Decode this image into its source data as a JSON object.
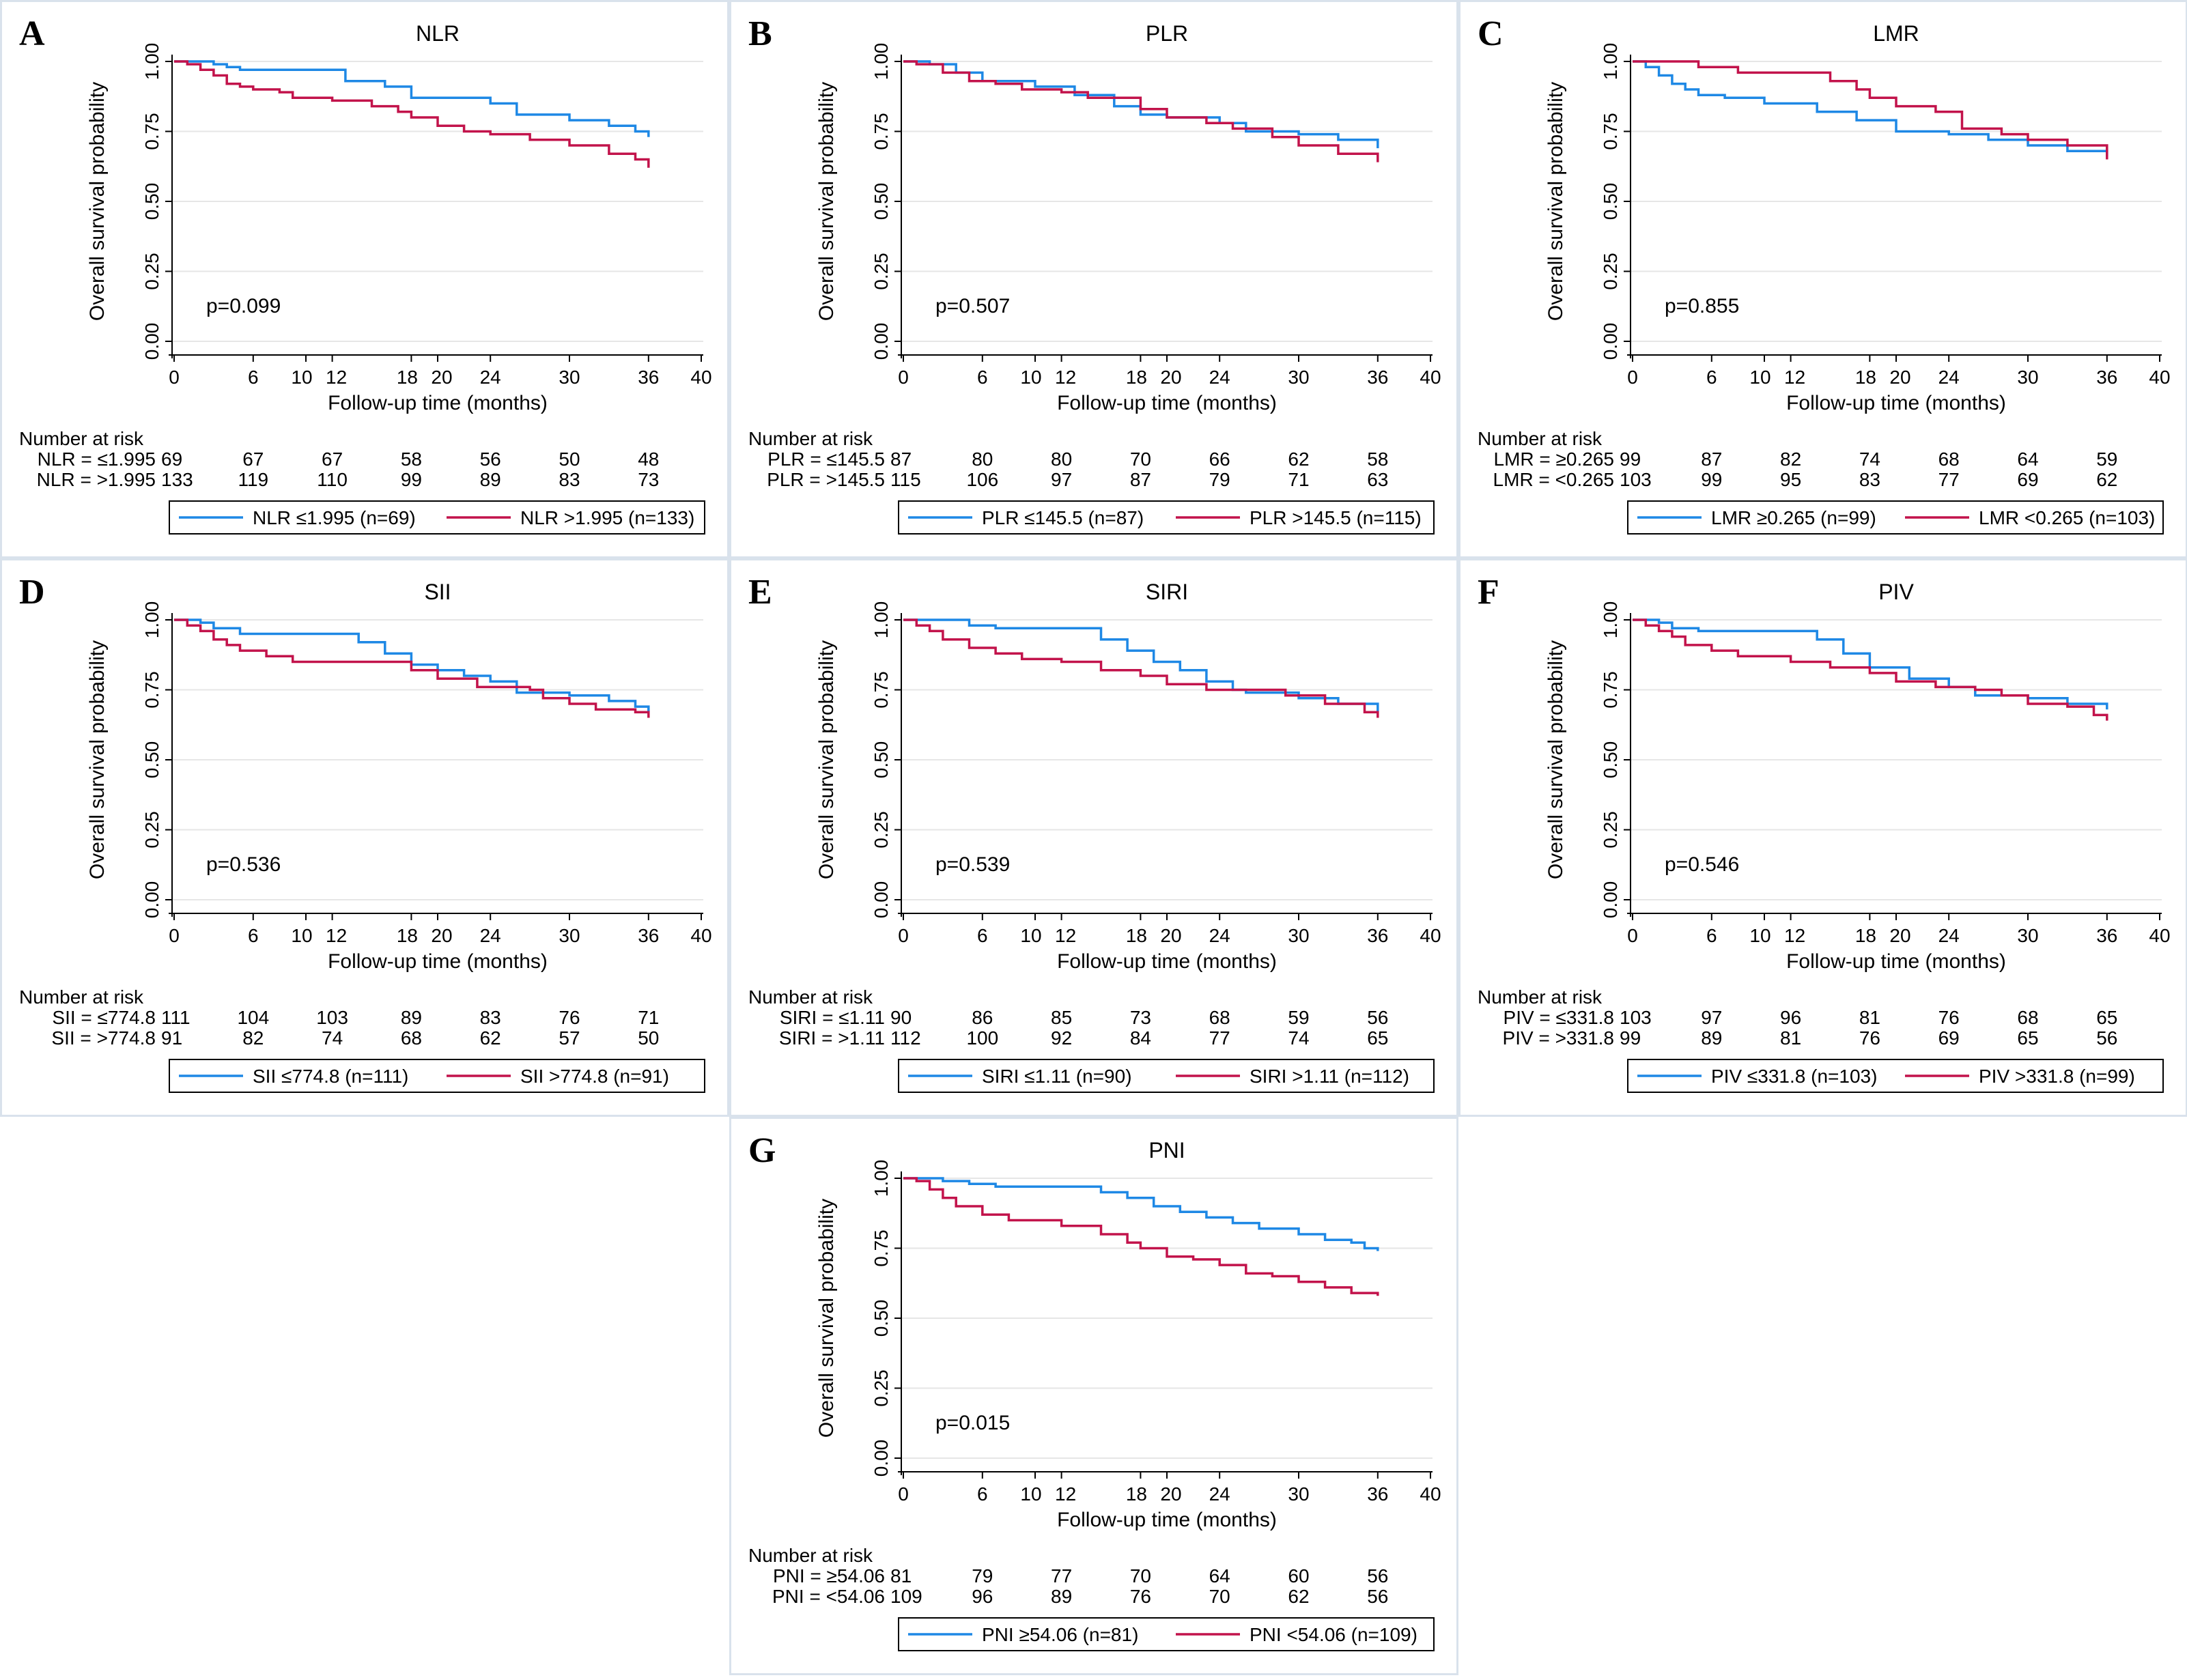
{
  "colors": {
    "low_group": "#1e88e5",
    "high_group": "#c2134b",
    "border": "#d9e2ec",
    "grid": "#e6e6e6"
  },
  "common": {
    "ylabel": "Overall survival probability",
    "xlabel": "Follow-up time (months)",
    "risk_title": "Number at risk",
    "xticks": [
      0,
      6,
      10,
      12,
      18,
      20,
      24,
      30,
      36,
      40
    ],
    "yticks": [
      "0.00",
      "0.25",
      "0.50",
      "0.75",
      "1.00"
    ],
    "risk_times": [
      0,
      6,
      12,
      18,
      24,
      30,
      36
    ],
    "xlim": [
      0,
      40
    ],
    "ylim": [
      0,
      1
    ]
  },
  "chart_data": [
    {
      "letter": "A",
      "type": "line",
      "title": "NLR",
      "p": "p=0.099",
      "risk": [
        {
          "label": "NLR = ≤1.995",
          "values": [
            69,
            67,
            67,
            58,
            56,
            50,
            48
          ]
        },
        {
          "label": "NLR = >1.995",
          "values": [
            133,
            119,
            110,
            99,
            89,
            83,
            73
          ]
        }
      ],
      "legend": [
        "NLR ≤1.995 (n=69)",
        "NLR >1.995 (n=133)"
      ],
      "series": [
        {
          "name": "NLR ≤1.995 (n=69)",
          "x": [
            0,
            2,
            3,
            4,
            5,
            12,
            13,
            16,
            18,
            24,
            26,
            30,
            33,
            35,
            36
          ],
          "y": [
            1.0,
            1.0,
            0.99,
            0.98,
            0.97,
            0.97,
            0.93,
            0.91,
            0.87,
            0.85,
            0.81,
            0.79,
            0.77,
            0.75,
            0.73
          ]
        },
        {
          "name": "NLR >1.995 (n=133)",
          "x": [
            0,
            1,
            2,
            3,
            4,
            5,
            6,
            8,
            9,
            12,
            15,
            17,
            18,
            20,
            22,
            24,
            27,
            30,
            33,
            35,
            36
          ],
          "y": [
            1.0,
            0.99,
            0.97,
            0.95,
            0.92,
            0.91,
            0.9,
            0.89,
            0.87,
            0.86,
            0.84,
            0.82,
            0.8,
            0.77,
            0.75,
            0.74,
            0.72,
            0.7,
            0.67,
            0.65,
            0.62
          ]
        }
      ]
    },
    {
      "letter": "B",
      "type": "line",
      "title": "PLR",
      "p": "p=0.507",
      "risk": [
        {
          "label": "PLR = ≤145.5",
          "values": [
            87,
            80,
            80,
            70,
            66,
            62,
            58
          ]
        },
        {
          "label": "PLR = >145.5",
          "values": [
            115,
            106,
            97,
            87,
            79,
            71,
            63
          ]
        }
      ],
      "legend": [
        "PLR ≤145.5 (n=87)",
        "PLR >145.5 (n=115)"
      ],
      "series": [
        {
          "name": "PLR ≤145.5 (n=87)",
          "x": [
            0,
            2,
            4,
            6,
            10,
            13,
            16,
            18,
            20,
            24,
            26,
            30,
            33,
            35,
            36
          ],
          "y": [
            1.0,
            0.99,
            0.96,
            0.93,
            0.91,
            0.88,
            0.84,
            0.81,
            0.8,
            0.78,
            0.75,
            0.74,
            0.72,
            0.72,
            0.69
          ]
        },
        {
          "name": "PLR >145.5 (n=115)",
          "x": [
            0,
            1,
            3,
            5,
            7,
            9,
            12,
            14,
            18,
            20,
            23,
            25,
            28,
            30,
            33,
            36
          ],
          "y": [
            1.0,
            0.99,
            0.96,
            0.93,
            0.92,
            0.9,
            0.89,
            0.87,
            0.83,
            0.8,
            0.78,
            0.76,
            0.73,
            0.7,
            0.67,
            0.64
          ]
        }
      ]
    },
    {
      "letter": "C",
      "type": "line",
      "title": "LMR",
      "p": "p=0.855",
      "risk": [
        {
          "label": "LMR = ≥0.265",
          "values": [
            99,
            87,
            82,
            74,
            68,
            64,
            59
          ]
        },
        {
          "label": "LMR = <0.265",
          "values": [
            103,
            99,
            95,
            83,
            77,
            69,
            62
          ]
        }
      ],
      "legend": [
        "LMR ≥0.265 (n=99)",
        "LMR <0.265 (n=103)"
      ],
      "series": [
        {
          "name": "LMR ≥0.265 (n=99)",
          "x": [
            0,
            1,
            2,
            3,
            4,
            5,
            7,
            10,
            14,
            17,
            20,
            24,
            27,
            30,
            33,
            36
          ],
          "y": [
            1.0,
            0.98,
            0.95,
            0.92,
            0.9,
            0.88,
            0.87,
            0.85,
            0.82,
            0.79,
            0.75,
            0.74,
            0.72,
            0.7,
            0.68,
            0.66
          ]
        },
        {
          "name": "LMR <0.265 (n=103)",
          "x": [
            0,
            3,
            5,
            8,
            13,
            15,
            17,
            18,
            20,
            23,
            25,
            28,
            30,
            33,
            36
          ],
          "y": [
            1.0,
            1.0,
            0.98,
            0.96,
            0.96,
            0.93,
            0.9,
            0.87,
            0.84,
            0.82,
            0.76,
            0.74,
            0.72,
            0.7,
            0.65
          ]
        }
      ]
    },
    {
      "letter": "D",
      "type": "line",
      "title": "SII",
      "p": "p=0.536",
      "risk": [
        {
          "label": "SII = ≤774.8",
          "values": [
            111,
            104,
            103,
            89,
            83,
            76,
            71
          ]
        },
        {
          "label": "SII = >774.8",
          "values": [
            91,
            82,
            74,
            68,
            62,
            57,
            50
          ]
        }
      ],
      "legend": [
        "SII ≤774.8 (n=111)",
        "SII >774.8 (n=91)"
      ],
      "series": [
        {
          "name": "SII ≤774.8 (n=111)",
          "x": [
            0,
            2,
            3,
            5,
            12,
            14,
            16,
            18,
            20,
            22,
            24,
            26,
            30,
            33,
            35,
            36
          ],
          "y": [
            1.0,
            0.99,
            0.97,
            0.95,
            0.95,
            0.92,
            0.88,
            0.84,
            0.82,
            0.8,
            0.78,
            0.74,
            0.73,
            0.71,
            0.69,
            0.67
          ]
        },
        {
          "name": "SII >774.8 (n=91)",
          "x": [
            0,
            1,
            2,
            3,
            4,
            5,
            7,
            9,
            18,
            20,
            23,
            27,
            28,
            30,
            32,
            35,
            36
          ],
          "y": [
            1.0,
            0.98,
            0.96,
            0.93,
            0.91,
            0.89,
            0.87,
            0.85,
            0.82,
            0.79,
            0.76,
            0.75,
            0.72,
            0.7,
            0.68,
            0.67,
            0.65
          ]
        }
      ]
    },
    {
      "letter": "E",
      "type": "line",
      "title": "SIRI",
      "p": "p=0.539",
      "risk": [
        {
          "label": "SIRI = ≤1.11",
          "values": [
            90,
            86,
            85,
            73,
            68,
            59,
            56
          ]
        },
        {
          "label": "SIRI = >1.11",
          "values": [
            112,
            100,
            92,
            84,
            77,
            74,
            65
          ]
        }
      ],
      "legend": [
        "SIRI ≤1.11 (n=90)",
        "SIRI >1.11 (n=112)"
      ],
      "series": [
        {
          "name": "SIRI ≤1.11 (n=90)",
          "x": [
            0,
            3,
            5,
            7,
            13,
            15,
            17,
            19,
            21,
            23,
            25,
            26,
            30,
            33,
            36
          ],
          "y": [
            1.0,
            1.0,
            0.98,
            0.97,
            0.97,
            0.93,
            0.89,
            0.85,
            0.82,
            0.78,
            0.75,
            0.74,
            0.72,
            0.7,
            0.67
          ]
        },
        {
          "name": "SIRI >1.11 (n=112)",
          "x": [
            0,
            1,
            2,
            3,
            5,
            7,
            9,
            12,
            15,
            18,
            20,
            23,
            27,
            29,
            32,
            35,
            36
          ],
          "y": [
            1.0,
            0.98,
            0.96,
            0.93,
            0.9,
            0.88,
            0.86,
            0.85,
            0.82,
            0.8,
            0.77,
            0.75,
            0.75,
            0.73,
            0.7,
            0.67,
            0.65
          ]
        }
      ]
    },
    {
      "letter": "F",
      "type": "line",
      "title": "PIV",
      "p": "p=0.546",
      "risk": [
        {
          "label": "PIV = ≤331.8",
          "values": [
            103,
            97,
            96,
            81,
            76,
            68,
            65
          ]
        },
        {
          "label": "PIV = >331.8",
          "values": [
            99,
            89,
            81,
            76,
            69,
            65,
            56
          ]
        }
      ],
      "legend": [
        "PIV ≤331.8 (n=103)",
        "PIV >331.8 (n=99)"
      ],
      "series": [
        {
          "name": "PIV ≤331.8 (n=103)",
          "x": [
            0,
            2,
            3,
            5,
            12,
            14,
            16,
            18,
            21,
            24,
            26,
            30,
            33,
            36
          ],
          "y": [
            1.0,
            0.99,
            0.97,
            0.96,
            0.96,
            0.93,
            0.88,
            0.83,
            0.79,
            0.76,
            0.73,
            0.72,
            0.7,
            0.68
          ]
        },
        {
          "name": "PIV >331.8 (n=99)",
          "x": [
            0,
            1,
            2,
            3,
            4,
            6,
            8,
            12,
            15,
            18,
            20,
            23,
            26,
            28,
            30,
            33,
            35,
            36
          ],
          "y": [
            1.0,
            0.98,
            0.96,
            0.94,
            0.91,
            0.89,
            0.87,
            0.85,
            0.83,
            0.81,
            0.78,
            0.76,
            0.75,
            0.73,
            0.7,
            0.69,
            0.66,
            0.64
          ]
        }
      ]
    },
    {
      "letter": "G",
      "type": "line",
      "title": "PNI",
      "p": "p=0.015",
      "risk": [
        {
          "label": "PNI = ≥54.06",
          "values": [
            81,
            79,
            77,
            70,
            64,
            60,
            56
          ]
        },
        {
          "label": "PNI = <54.06",
          "values": [
            109,
            96,
            89,
            76,
            70,
            62,
            56
          ]
        }
      ],
      "legend": [
        "PNI ≥54.06 (n=81)",
        "PNI <54.06 (n=109)"
      ],
      "series": [
        {
          "name": "PNI ≥54.06 (n=81)",
          "x": [
            0,
            3,
            5,
            7,
            13,
            15,
            17,
            19,
            21,
            23,
            25,
            27,
            30,
            32,
            34,
            35,
            36
          ],
          "y": [
            1.0,
            0.99,
            0.98,
            0.97,
            0.97,
            0.95,
            0.93,
            0.9,
            0.88,
            0.86,
            0.84,
            0.82,
            0.8,
            0.78,
            0.77,
            0.75,
            0.74
          ]
        },
        {
          "name": "PNI <54.06 (n=109)",
          "x": [
            0,
            1,
            2,
            3,
            4,
            6,
            8,
            12,
            15,
            17,
            18,
            20,
            22,
            24,
            26,
            28,
            30,
            32,
            34,
            36
          ],
          "y": [
            1.0,
            0.99,
            0.96,
            0.93,
            0.9,
            0.87,
            0.85,
            0.83,
            0.8,
            0.77,
            0.75,
            0.72,
            0.71,
            0.69,
            0.66,
            0.65,
            0.63,
            0.61,
            0.59,
            0.58
          ]
        }
      ]
    }
  ]
}
